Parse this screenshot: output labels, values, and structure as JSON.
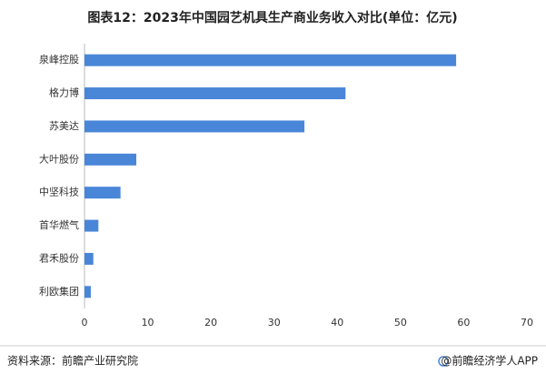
{
  "chart_data": {
    "type": "hbar",
    "title": "图表12：2023年中国园艺机具生产商业务收入对比(单位：亿元)",
    "categories": [
      "泉峰控股",
      "格力博",
      "苏美达",
      "大叶股份",
      "中坚科技",
      "首华燃气",
      "君禾股份",
      "利欧集团"
    ],
    "values": [
      58.8,
      41.3,
      34.8,
      8.2,
      5.7,
      2.2,
      1.4,
      1.0
    ],
    "color": "#4a86d8",
    "xlim": [
      0,
      70
    ],
    "xticks": [
      0,
      10,
      20,
      30,
      40,
      50,
      60,
      70
    ],
    "grid": false,
    "source": "资料来源：前瞻产业研究院",
    "credit": "@前瞻经济学人APP"
  }
}
